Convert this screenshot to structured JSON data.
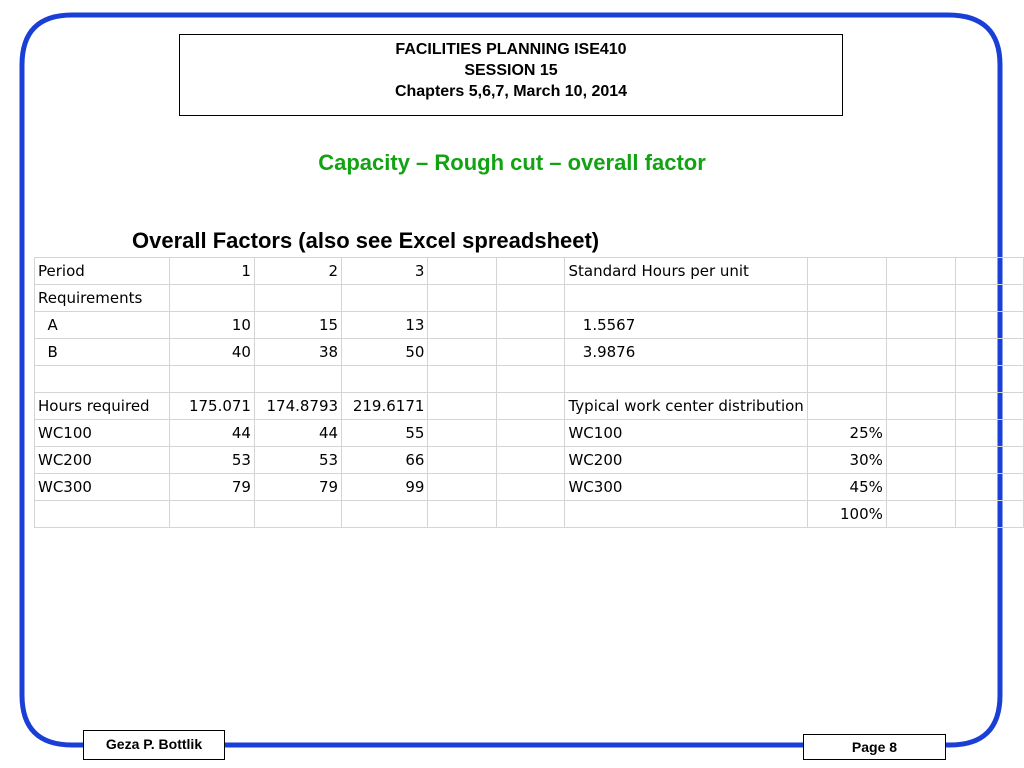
{
  "header": {
    "line1": "FACILITIES PLANNING ISE410",
    "line2": "SESSION 15",
    "line3": "Chapters 5,6,7, March 10, 2014"
  },
  "title": "Capacity – Rough cut – overall factor",
  "subtitle": "Overall Factors (also see Excel spreadsheet)",
  "spreadsheet": {
    "rows": [
      [
        "Period",
        "1",
        "2",
        "3",
        "",
        "",
        "Standard Hours per unit",
        "",
        "",
        ""
      ],
      [
        "Requirements",
        "",
        "",
        "",
        "",
        "",
        "",
        "",
        "",
        ""
      ],
      [
        "  A",
        "10",
        "15",
        "13",
        "",
        "",
        "   1.5567",
        "",
        "",
        ""
      ],
      [
        "  B",
        "40",
        "38",
        "50",
        "",
        "",
        "   3.9876",
        "",
        "",
        ""
      ],
      [
        "",
        "",
        "",
        "",
        "",
        "",
        "",
        "",
        "",
        ""
      ],
      [
        "Hours required",
        "175.071",
        "174.8793",
        "219.6171",
        "",
        "",
        "Typical work center distribution",
        "",
        "",
        ""
      ],
      [
        "WC100",
        "44",
        "44",
        "55",
        "",
        "",
        "WC100",
        "25%",
        "",
        ""
      ],
      [
        "WC200",
        "53",
        "53",
        "66",
        "",
        "",
        "WC200",
        "30%",
        "",
        ""
      ],
      [
        "WC300",
        "79",
        "79",
        "99",
        "",
        "",
        "WC300",
        "45%",
        "",
        ""
      ],
      [
        "",
        "",
        "",
        "",
        "",
        "",
        "",
        "100%",
        "",
        ""
      ]
    ]
  },
  "footer": {
    "author": "Geza P. Bottlik",
    "page": "Page 8"
  },
  "colors": {
    "frame": "#1a3fd6",
    "title": "#12a312"
  }
}
